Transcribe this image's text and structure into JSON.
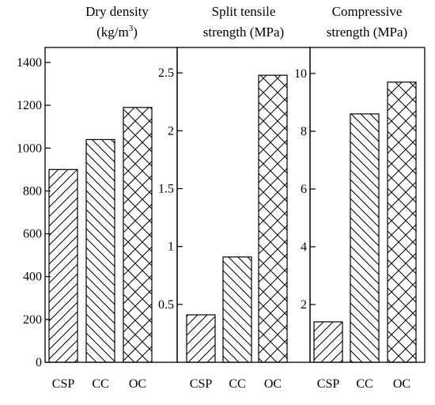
{
  "chart_data": [
    {
      "type": "bar",
      "title_lines": [
        "Dry density",
        "(kg/m",
        "3",
        ")"
      ],
      "categories": [
        "CSP",
        "CC",
        "OC"
      ],
      "values": [
        900,
        1040,
        1190
      ],
      "patterns": [
        "diag-right",
        "diag-left",
        "cross"
      ],
      "yticks": [
        "0",
        "200",
        "400",
        "600",
        "800",
        "1000",
        "1200",
        "1400"
      ],
      "ytick_values": [
        0,
        200,
        400,
        600,
        800,
        1000,
        1200,
        1400
      ],
      "ylim": [
        0,
        1470
      ]
    },
    {
      "type": "bar",
      "title_lines": [
        "Split tensile",
        "strength (MPa)"
      ],
      "categories": [
        "CSP",
        "CC",
        "OC"
      ],
      "values": [
        0.41,
        0.91,
        2.48
      ],
      "patterns": [
        "diag-right",
        "diag-left",
        "cross"
      ],
      "yticks": [
        "0.5",
        "1",
        "1.5",
        "2",
        "2.5"
      ],
      "ytick_values": [
        0.5,
        1,
        1.5,
        2,
        2.5
      ],
      "ylim": [
        0,
        2.72
      ]
    },
    {
      "type": "bar",
      "title_lines": [
        "Compressive",
        "strength (MPa)"
      ],
      "categories": [
        "CSP",
        "CC",
        "OC"
      ],
      "values": [
        1.4,
        8.6,
        9.7
      ],
      "patterns": [
        "diag-right",
        "diag-left",
        "cross"
      ],
      "yticks": [
        "2",
        "4",
        "6",
        "8",
        "10"
      ],
      "ytick_values": [
        2,
        4,
        6,
        8,
        10
      ],
      "ylim": [
        0,
        10.9
      ]
    }
  ]
}
